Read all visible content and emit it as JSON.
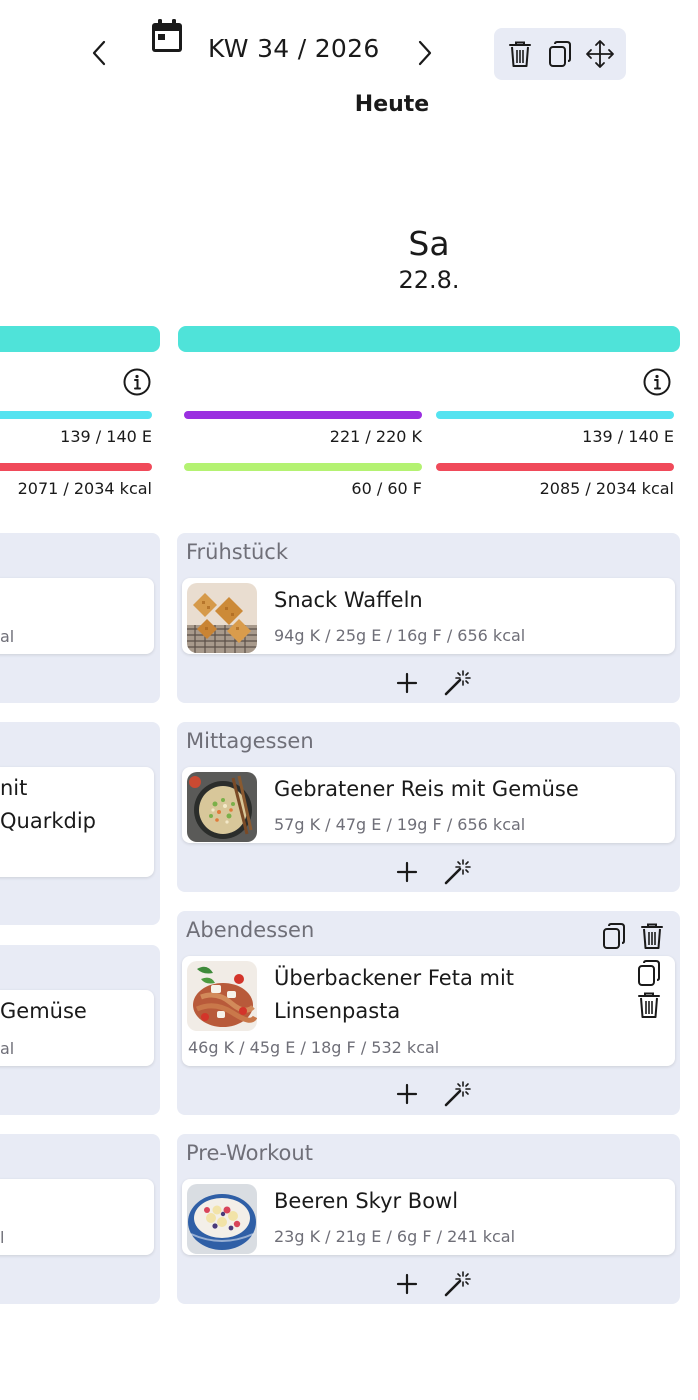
{
  "header": {
    "week_label": "KW 34 / 2026",
    "today_label": "Heute",
    "prev_icon": "chevron-left-icon",
    "next_icon": "chevron-right-icon",
    "calendar_icon": "calendar-icon",
    "toolbar_icons": [
      "trash-icon",
      "copy-icon",
      "move-icon"
    ]
  },
  "colors": {
    "accent_teal": "#4fe3d9",
    "carbs": "#9a2fe0",
    "protein": "#55e3f0",
    "fat": "#b4f272",
    "kcal": "#f04a5a",
    "section_bg": "#e8ebf5"
  },
  "left_day": {
    "protein_label": "139 / 140 E",
    "kcal_label": "2071 / 2034 kcal",
    "meal1_macros_fragment": "al",
    "meal2_name_line1": "nit",
    "meal2_name_line2": "Quarkdip",
    "meal3_name": "Gemüse",
    "meal3_macros_fragment": "al",
    "meal4_macros_fragment": "l"
  },
  "day": {
    "name": "Sa",
    "date": "22.8.",
    "carbs_label": "221 / 220 K",
    "protein_label": "139 / 140 E",
    "fat_label": "60 / 60 F",
    "kcal_label": "2085 / 2034 kcal",
    "carbs_fraction": 1.0,
    "protein_fraction": 0.99,
    "fat_fraction": 1.0,
    "kcal_fraction": 1.0,
    "meals": [
      {
        "title": "Frühstück",
        "food": {
          "name": "Snack Waffeln",
          "macros": "94g K / 25g E / 16g F / 656 kcal"
        }
      },
      {
        "title": "Mittagessen",
        "food": {
          "name": "Gebratener Reis mit Gemüse",
          "macros": "57g K / 47g E / 19g F / 656 kcal"
        }
      },
      {
        "title": "Abendessen",
        "food": {
          "name_line1": "Überbackener Feta mit",
          "name_line2": "Linsenpasta",
          "macros": "46g K / 45g E / 18g F / 532 kcal"
        }
      },
      {
        "title": "Pre-Workout",
        "food": {
          "name": "Beeren Skyr Bowl",
          "macros": "23g K / 21g E / 6g F / 241 kcal"
        }
      }
    ]
  }
}
